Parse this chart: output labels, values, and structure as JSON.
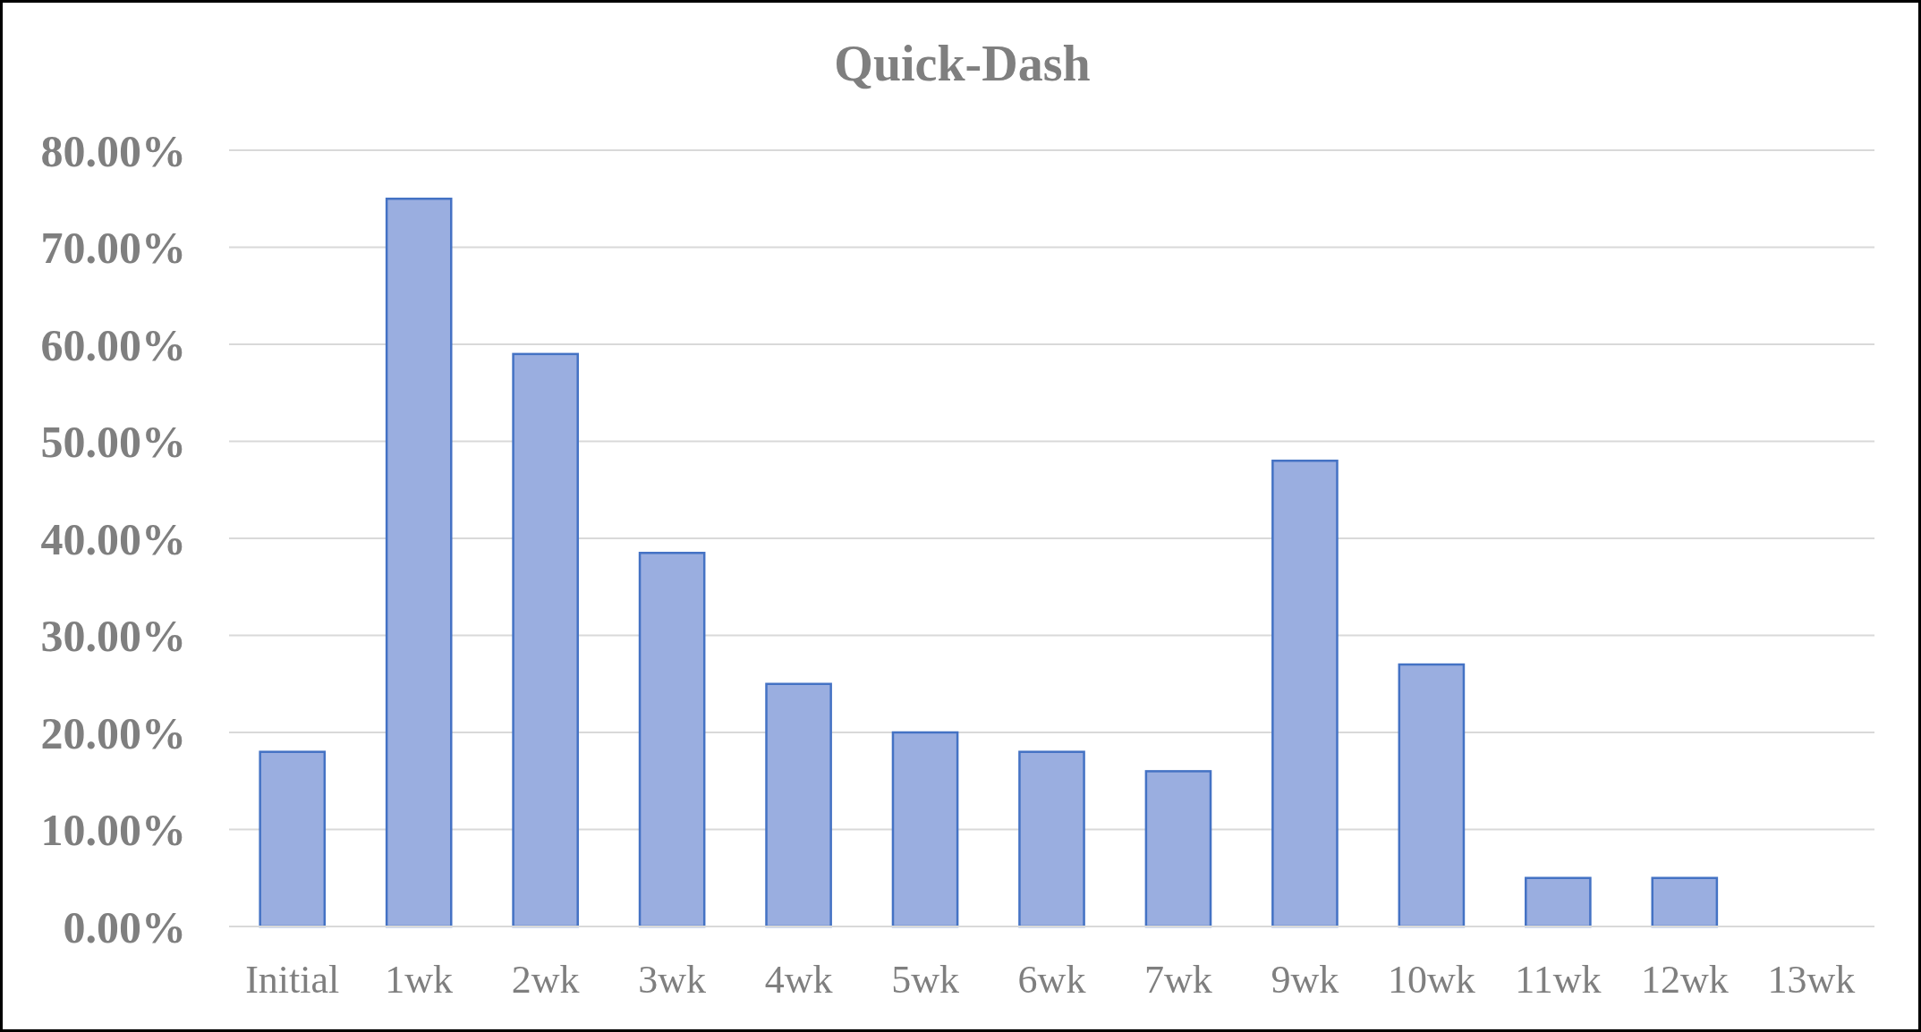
{
  "chart_data": {
    "type": "bar",
    "title": "Quick-Dash",
    "categories": [
      "Initial",
      "1wk",
      "2wk",
      "3wk",
      "4wk",
      "5wk",
      "6wk",
      "7wk",
      "9wk",
      "10wk",
      "11wk",
      "12wk",
      "13wk"
    ],
    "values": [
      18,
      75,
      59,
      38.5,
      25,
      20,
      18,
      16,
      48,
      27,
      5,
      5,
      0
    ],
    "color": "#9aaee0",
    "ylim": [
      0,
      80
    ],
    "yticks": [
      {
        "value": 0,
        "label": "0.00%"
      },
      {
        "value": 10,
        "label": "10.00%"
      },
      {
        "value": 20,
        "label": "20.00%"
      },
      {
        "value": 30,
        "label": "30.00%"
      },
      {
        "value": 40,
        "label": "40.00%"
      },
      {
        "value": 50,
        "label": "50.00%"
      },
      {
        "value": 60,
        "label": "60.00%"
      },
      {
        "value": 70,
        "label": "70.00%"
      },
      {
        "value": 80,
        "label": "80.00%"
      }
    ],
    "grid": "y"
  }
}
